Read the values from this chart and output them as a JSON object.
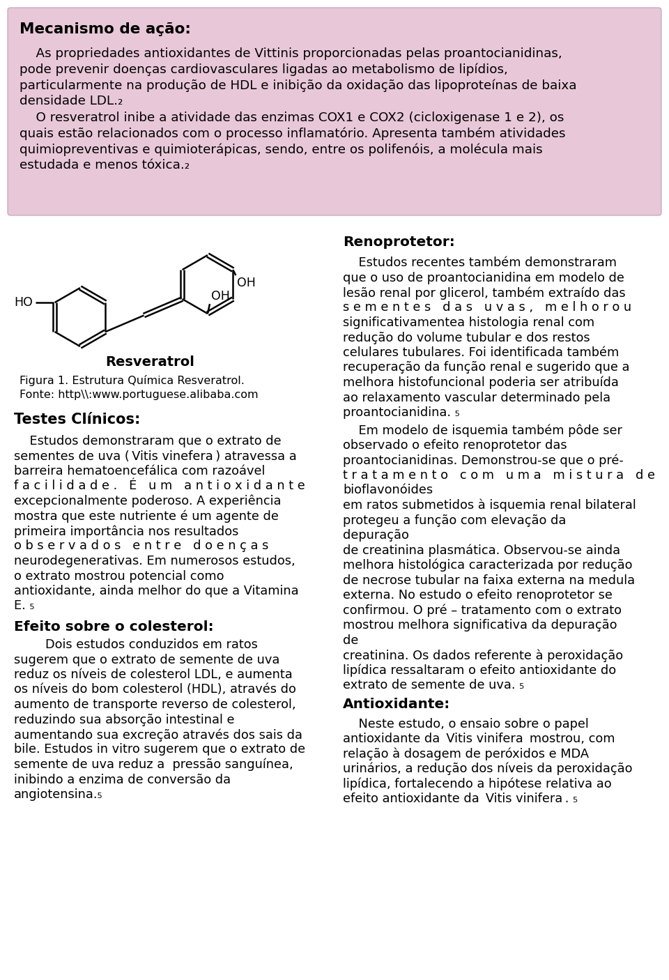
{
  "bg_color": "#ffffff",
  "pink_box_color": "#e8c8d8",
  "title1": "Mecanismo de ação:",
  "fig_label": "Resveratrol",
  "fig_caption1": "Figura 1. Estrutura Química Resveratrol.",
  "fig_caption2": "Fonte: http\\\\:www.portuguese.alibaba.com",
  "title2": "Testes Clínicos:",
  "title3": "Efeito sobre o colesterol:",
  "title4": "Renoprotetor:",
  "title5": "Antioxidante:"
}
